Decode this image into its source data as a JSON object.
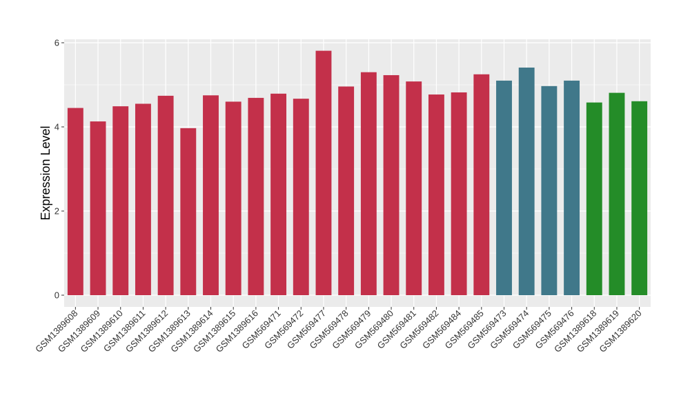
{
  "chart_data": {
    "type": "bar",
    "title": "",
    "xlabel": "",
    "ylabel": "Expression Level",
    "ylim": [
      0,
      6.2
    ],
    "yticks": [
      0,
      2,
      4,
      6
    ],
    "grid": true,
    "categories": [
      "GSM1389608",
      "GSM1389609",
      "GSM1389610",
      "GSM1389611",
      "GSM1389612",
      "GSM1389613",
      "GSM1389614",
      "GSM1389615",
      "GSM1389616",
      "GSM569471",
      "GSM569472",
      "GSM569477",
      "GSM569478",
      "GSM569479",
      "GSM569480",
      "GSM569481",
      "GSM569482",
      "GSM569484",
      "GSM569485",
      "GSM569473",
      "GSM569474",
      "GSM569475",
      "GSM569476",
      "GSM1389618",
      "GSM1389619",
      "GSM1389620"
    ],
    "values": [
      4.45,
      4.13,
      4.49,
      4.55,
      4.74,
      3.97,
      4.75,
      4.6,
      4.69,
      4.79,
      4.67,
      5.81,
      4.96,
      5.3,
      5.23,
      5.08,
      4.77,
      4.82,
      5.25,
      5.1,
      5.41,
      4.97,
      5.1,
      4.58,
      4.81,
      4.61
    ],
    "colors": [
      "#C3304A",
      "#C3304A",
      "#C3304A",
      "#C3304A",
      "#C3304A",
      "#C3304A",
      "#C3304A",
      "#C3304A",
      "#C3304A",
      "#C3304A",
      "#C3304A",
      "#C3304A",
      "#C3304A",
      "#C3304A",
      "#C3304A",
      "#C3304A",
      "#C3304A",
      "#C3304A",
      "#C3304A",
      "#40788A",
      "#40788A",
      "#40788A",
      "#40788A",
      "#248C28",
      "#248C28",
      "#248C28"
    ],
    "panel_background": "#EBEBEB",
    "grid_color": "#FFFFFF"
  }
}
